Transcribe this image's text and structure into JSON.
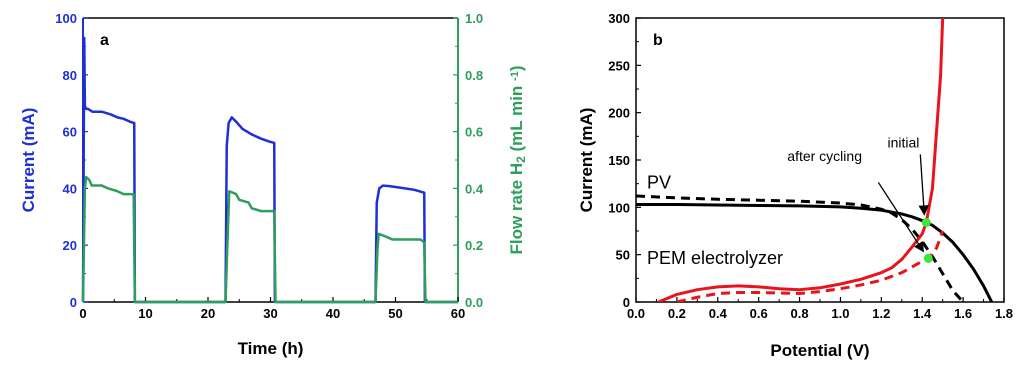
{
  "chart_data": [
    {
      "panel": "a",
      "type": "line",
      "title": "",
      "xlabel": "Time (h)",
      "ylabel": "Current (mA)",
      "y2label": "Flow rate H",
      "y2label_sub": "2",
      "y2label_unit": "(mL min",
      "y2label_sup": "-1",
      "y2label_close": ")",
      "xlim": [
        0,
        60
      ],
      "ylim": [
        0,
        100
      ],
      "y2lim": [
        0,
        1.0
      ],
      "xticks": [
        "0",
        "10",
        "20",
        "30",
        "40",
        "50",
        "60"
      ],
      "yticks": [
        "0",
        "20",
        "40",
        "60",
        "80",
        "100"
      ],
      "y2ticks": [
        "0.0",
        "0.2",
        "0.4",
        "0.6",
        "0.8",
        "1.0"
      ],
      "colors": {
        "current": "#1f2fd6",
        "flow": "#2e9e5b",
        "left_axis": "#1f2fd6",
        "right_axis": "#2e9e5b"
      },
      "series": [
        {
          "axis": "left",
          "x": [
            0.0,
            0.2,
            0.3,
            0.5,
            0.8,
            1.5,
            3,
            4.5,
            5.5,
            6.5,
            7.5,
            8.2,
            8.3,
            22.8,
            23.0,
            23.3,
            23.8,
            24.5,
            25.5,
            27,
            28.5,
            29.8,
            30.6,
            30.7,
            46.8,
            47.0,
            47.4,
            48.0,
            49,
            51,
            53,
            54.6,
            54.7,
            60
          ],
          "y": [
            0,
            93,
            69,
            68,
            68,
            67,
            67,
            66,
            65,
            64.5,
            63.5,
            63,
            0,
            0,
            55,
            63,
            65,
            63.5,
            61,
            59,
            57.5,
            56.5,
            56,
            0,
            0,
            35,
            40,
            41,
            40.8,
            40.2,
            39.5,
            38.5,
            0,
            0
          ]
        },
        {
          "axis": "right",
          "x": [
            0.0,
            0.3,
            0.5,
            1.0,
            1.4,
            3,
            4,
            5.5,
            6.5,
            8.1,
            8.3,
            22.8,
            23.1,
            23.4,
            24.5,
            25,
            26.5,
            27,
            28.5,
            30.6,
            30.8,
            46.8,
            47.1,
            47.3,
            48.5,
            49.5,
            54.0,
            54.6,
            54.8,
            60
          ],
          "y": [
            0,
            0.4,
            0.44,
            0.43,
            0.41,
            0.41,
            0.4,
            0.39,
            0.38,
            0.38,
            0,
            0,
            0.2,
            0.39,
            0.38,
            0.36,
            0.35,
            0.33,
            0.32,
            0.32,
            0,
            0,
            0.18,
            0.24,
            0.23,
            0.22,
            0.22,
            0.21,
            0,
            0
          ]
        }
      ]
    },
    {
      "panel": "b",
      "type": "line",
      "title": "",
      "xlabel": "Potential (V)",
      "ylabel": "Current (mA)",
      "xlim": [
        0,
        1.8
      ],
      "ylim": [
        0,
        300
      ],
      "xticks": [
        "0.0",
        "0.2",
        "0.4",
        "0.6",
        "0.8",
        "1.0",
        "1.2",
        "1.4",
        "1.6",
        "1.8"
      ],
      "yticks": [
        "0",
        "50",
        "100",
        "150",
        "200",
        "250",
        "300"
      ],
      "annotations": {
        "pv": "PV",
        "pem": "PEM electrolyzer",
        "after_cycling": "after cycling",
        "initial": "initial"
      },
      "colors": {
        "pv": "#000000",
        "pem": "#e8141c",
        "intersection": "#39e83a"
      },
      "series": [
        {
          "style": "solid",
          "color": "#000000",
          "x": [
            0.0,
            0.2,
            0.4,
            0.6,
            0.8,
            1.0,
            1.1,
            1.2,
            1.3,
            1.35,
            1.4,
            1.45,
            1.5,
            1.55,
            1.6,
            1.65,
            1.7,
            1.74
          ],
          "y": [
            103,
            103,
            102.5,
            102,
            101.5,
            100.5,
            99,
            97,
            93,
            90,
            86,
            81,
            73,
            63,
            50,
            35,
            17,
            0
          ]
        },
        {
          "style": "dashed",
          "color": "#000000",
          "x": [
            0.0,
            0.2,
            0.4,
            0.6,
            0.8,
            1.0,
            1.1,
            1.2,
            1.25,
            1.3,
            1.35,
            1.4,
            1.45,
            1.5,
            1.55,
            1.6
          ],
          "y": [
            112,
            110,
            108.5,
            107.5,
            106.5,
            104.5,
            102.5,
            98,
            94,
            87,
            77,
            64,
            48,
            30,
            12,
            0
          ]
        },
        {
          "style": "solid",
          "color": "#e8141c",
          "x": [
            0.11,
            0.2,
            0.3,
            0.4,
            0.5,
            0.6,
            0.7,
            0.8,
            0.9,
            1.0,
            1.1,
            1.2,
            1.25,
            1.3,
            1.35,
            1.4,
            1.42,
            1.45,
            1.47,
            1.49,
            1.5
          ],
          "y": [
            0,
            8,
            13,
            16,
            17,
            16,
            14,
            13,
            15,
            19,
            24,
            31,
            36,
            45,
            58,
            72,
            84,
            120,
            180,
            240,
            300
          ]
        },
        {
          "style": "dashed",
          "color": "#e8141c",
          "x": [
            0.2,
            0.3,
            0.4,
            0.5,
            0.6,
            0.7,
            0.8,
            0.9,
            1.0,
            1.1,
            1.2,
            1.3,
            1.35,
            1.4,
            1.43,
            1.47,
            1.5
          ],
          "y": [
            0,
            5,
            9,
            10,
            10,
            9.5,
            9,
            11,
            14,
            18,
            23,
            31,
            37,
            43,
            46,
            57,
            75
          ]
        }
      ],
      "points": [
        {
          "name": "initial",
          "x": 1.42,
          "y": 84
        },
        {
          "name": "after cycling",
          "x": 1.43,
          "y": 46
        }
      ]
    }
  ]
}
